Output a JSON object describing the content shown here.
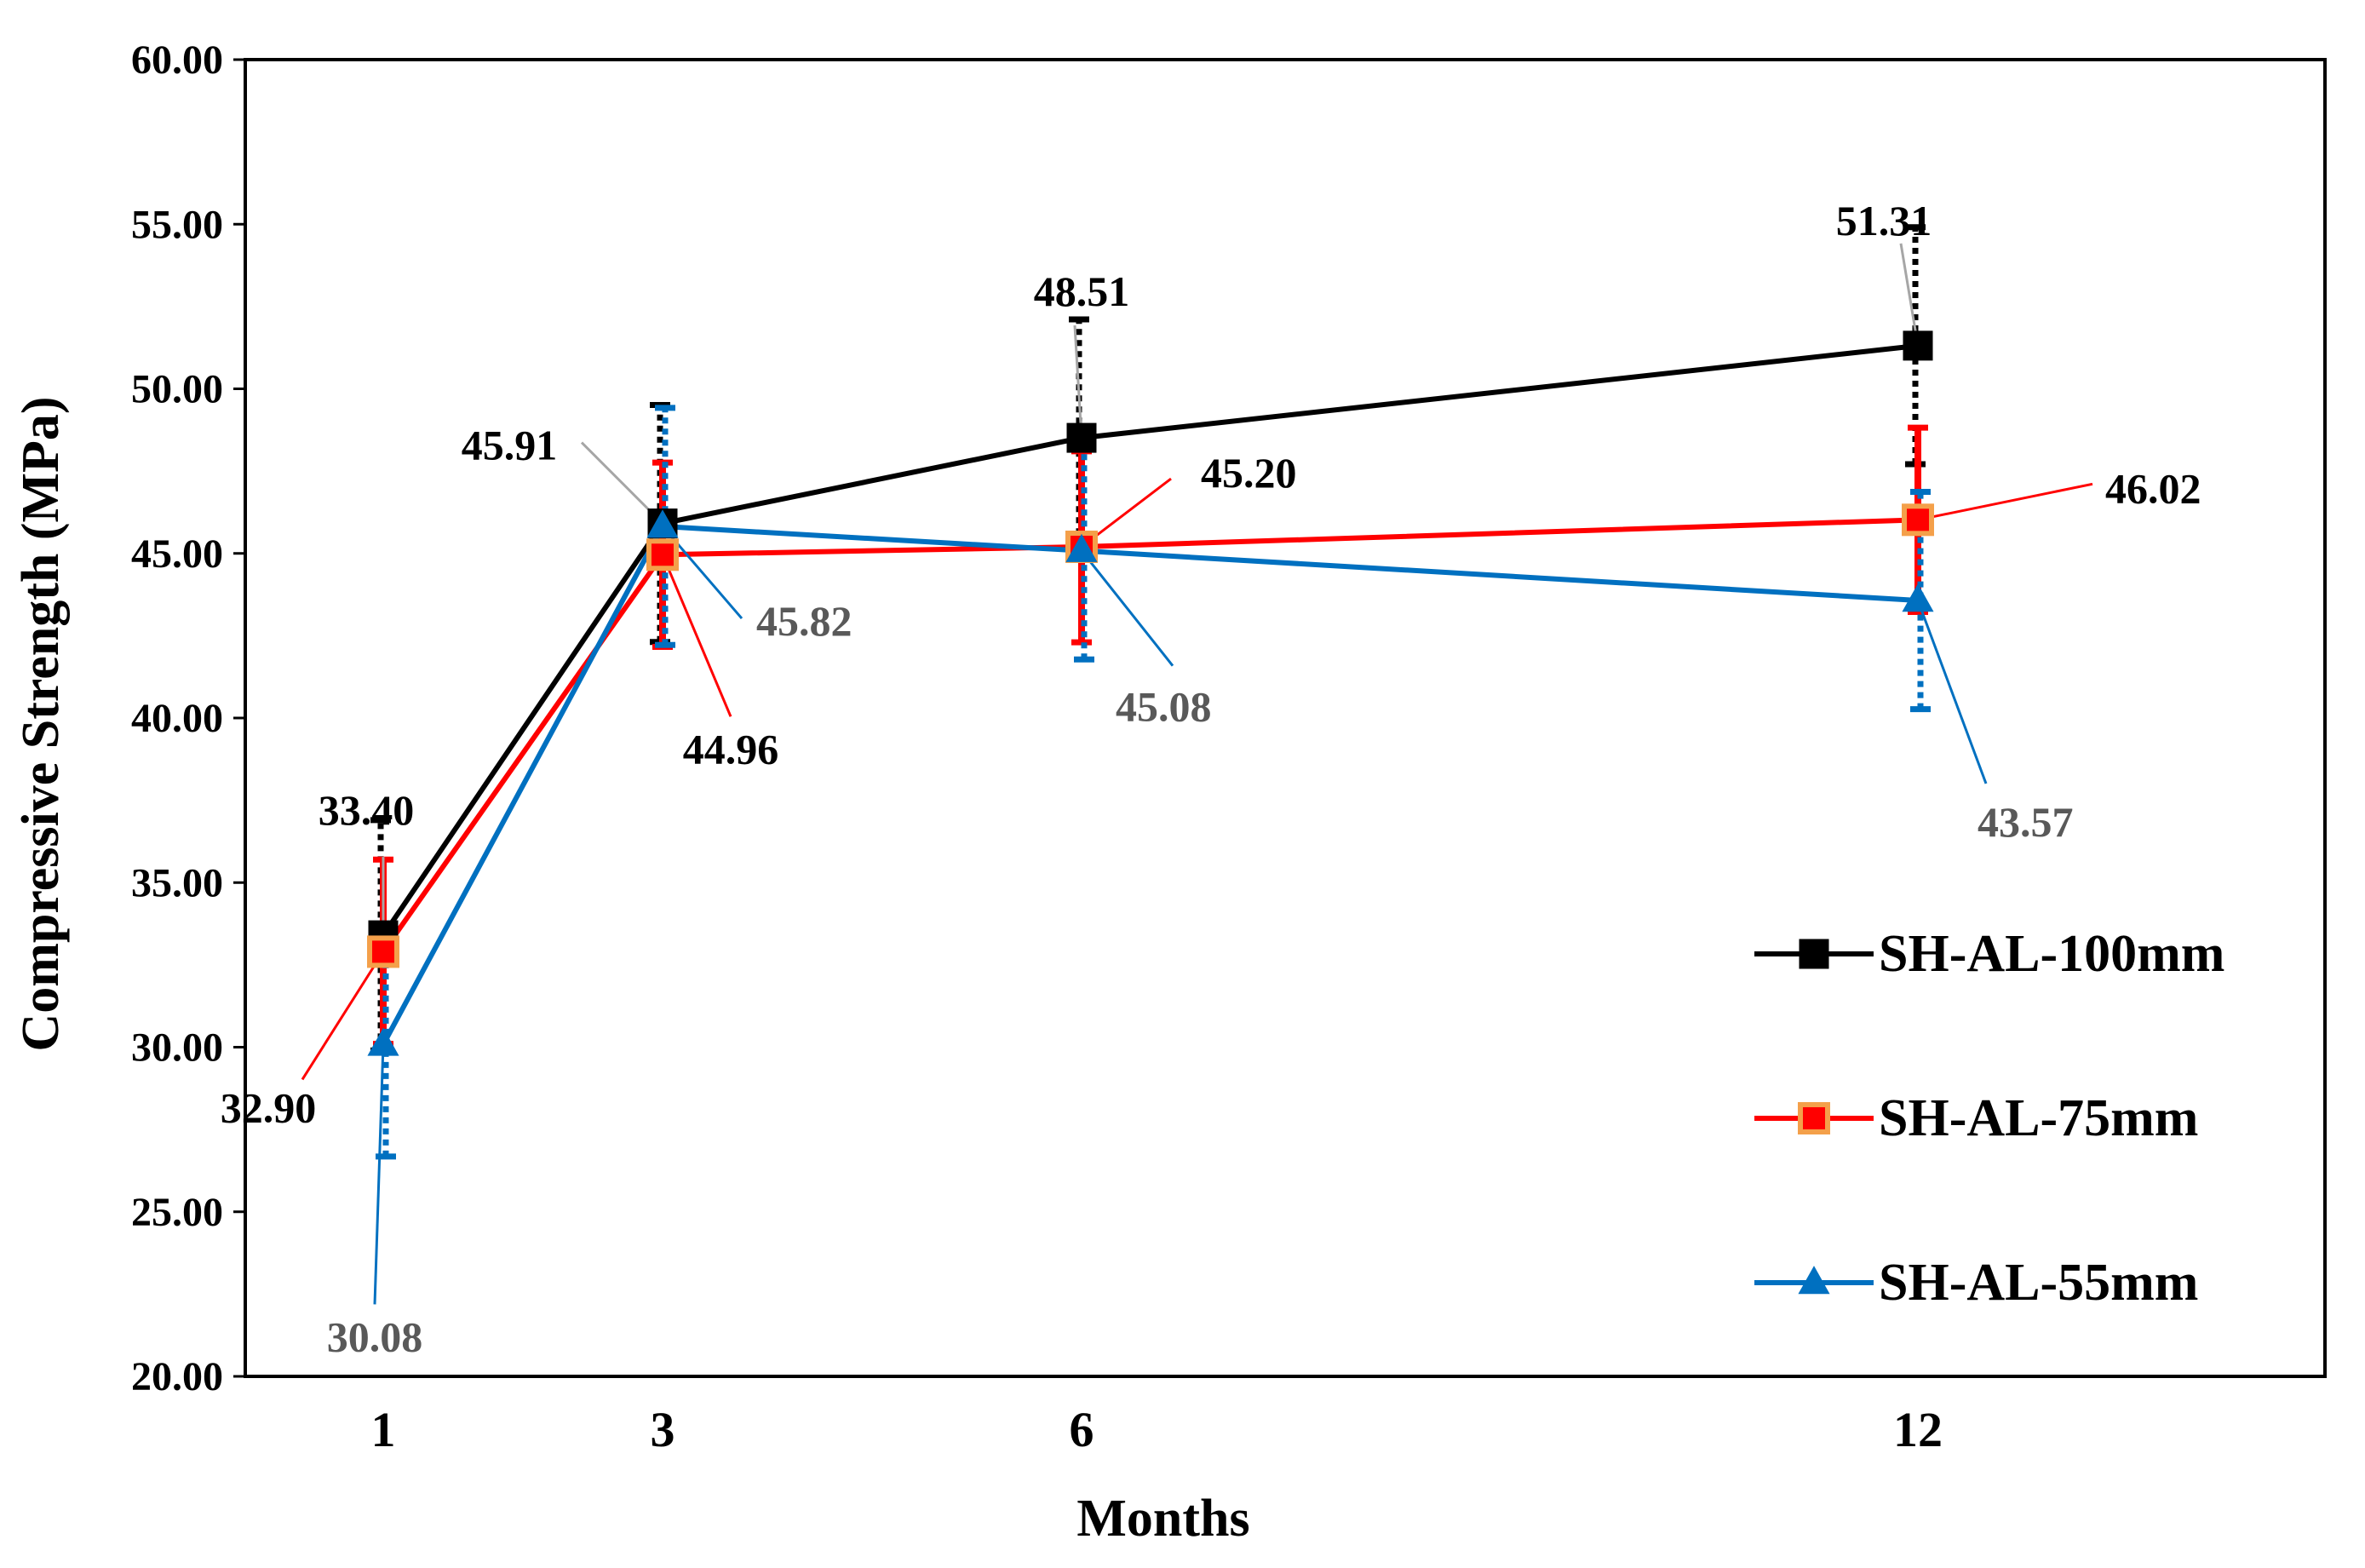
{
  "chart_data": {
    "type": "line",
    "title": "",
    "xlabel": "Months",
    "ylabel": "Compressive Strength (MPa)",
    "categories": [
      "1",
      "3",
      "6",
      "12"
    ],
    "ylim": [
      20,
      60
    ],
    "yticks": [
      "20.00",
      "25.00",
      "30.00",
      "35.00",
      "40.00",
      "45.00",
      "50.00",
      "55.00",
      "60.00"
    ],
    "grid": false,
    "legend_position": "right",
    "series": [
      {
        "name": "SH-AL-100mm",
        "values": [
          33.4,
          45.91,
          48.51,
          51.31
        ],
        "labels": [
          "33.40",
          "45.91",
          "48.51",
          "51.31"
        ],
        "error": [
          3.5,
          3.6,
          3.6,
          3.6
        ],
        "color": "#000000",
        "marker": "square",
        "marker_fill": "#000000",
        "error_style": "dotted",
        "label_color": "#000000"
      },
      {
        "name": "SH-AL-75mm",
        "values": [
          32.9,
          44.96,
          45.2,
          46.02
        ],
        "labels": [
          "32.90",
          "44.96",
          "45.20",
          "46.02"
        ],
        "error": [
          2.8,
          2.8,
          2.9,
          2.8
        ],
        "color": "#ff0000",
        "marker": "square",
        "marker_fill": "#ff0000",
        "marker_stroke": "#f4a04a",
        "error_style": "solid",
        "label_color": "#000000"
      },
      {
        "name": "SH-AL-55mm",
        "values": [
          30.08,
          45.82,
          45.08,
          43.57
        ],
        "labels": [
          "30.08",
          "45.82",
          "45.08",
          "43.57"
        ],
        "error": [
          3.4,
          3.6,
          3.3,
          3.3
        ],
        "color": "#0070c0",
        "marker": "triangle",
        "marker_fill": "#0070c0",
        "error_style": "dotted",
        "label_color": "#595959"
      }
    ]
  }
}
